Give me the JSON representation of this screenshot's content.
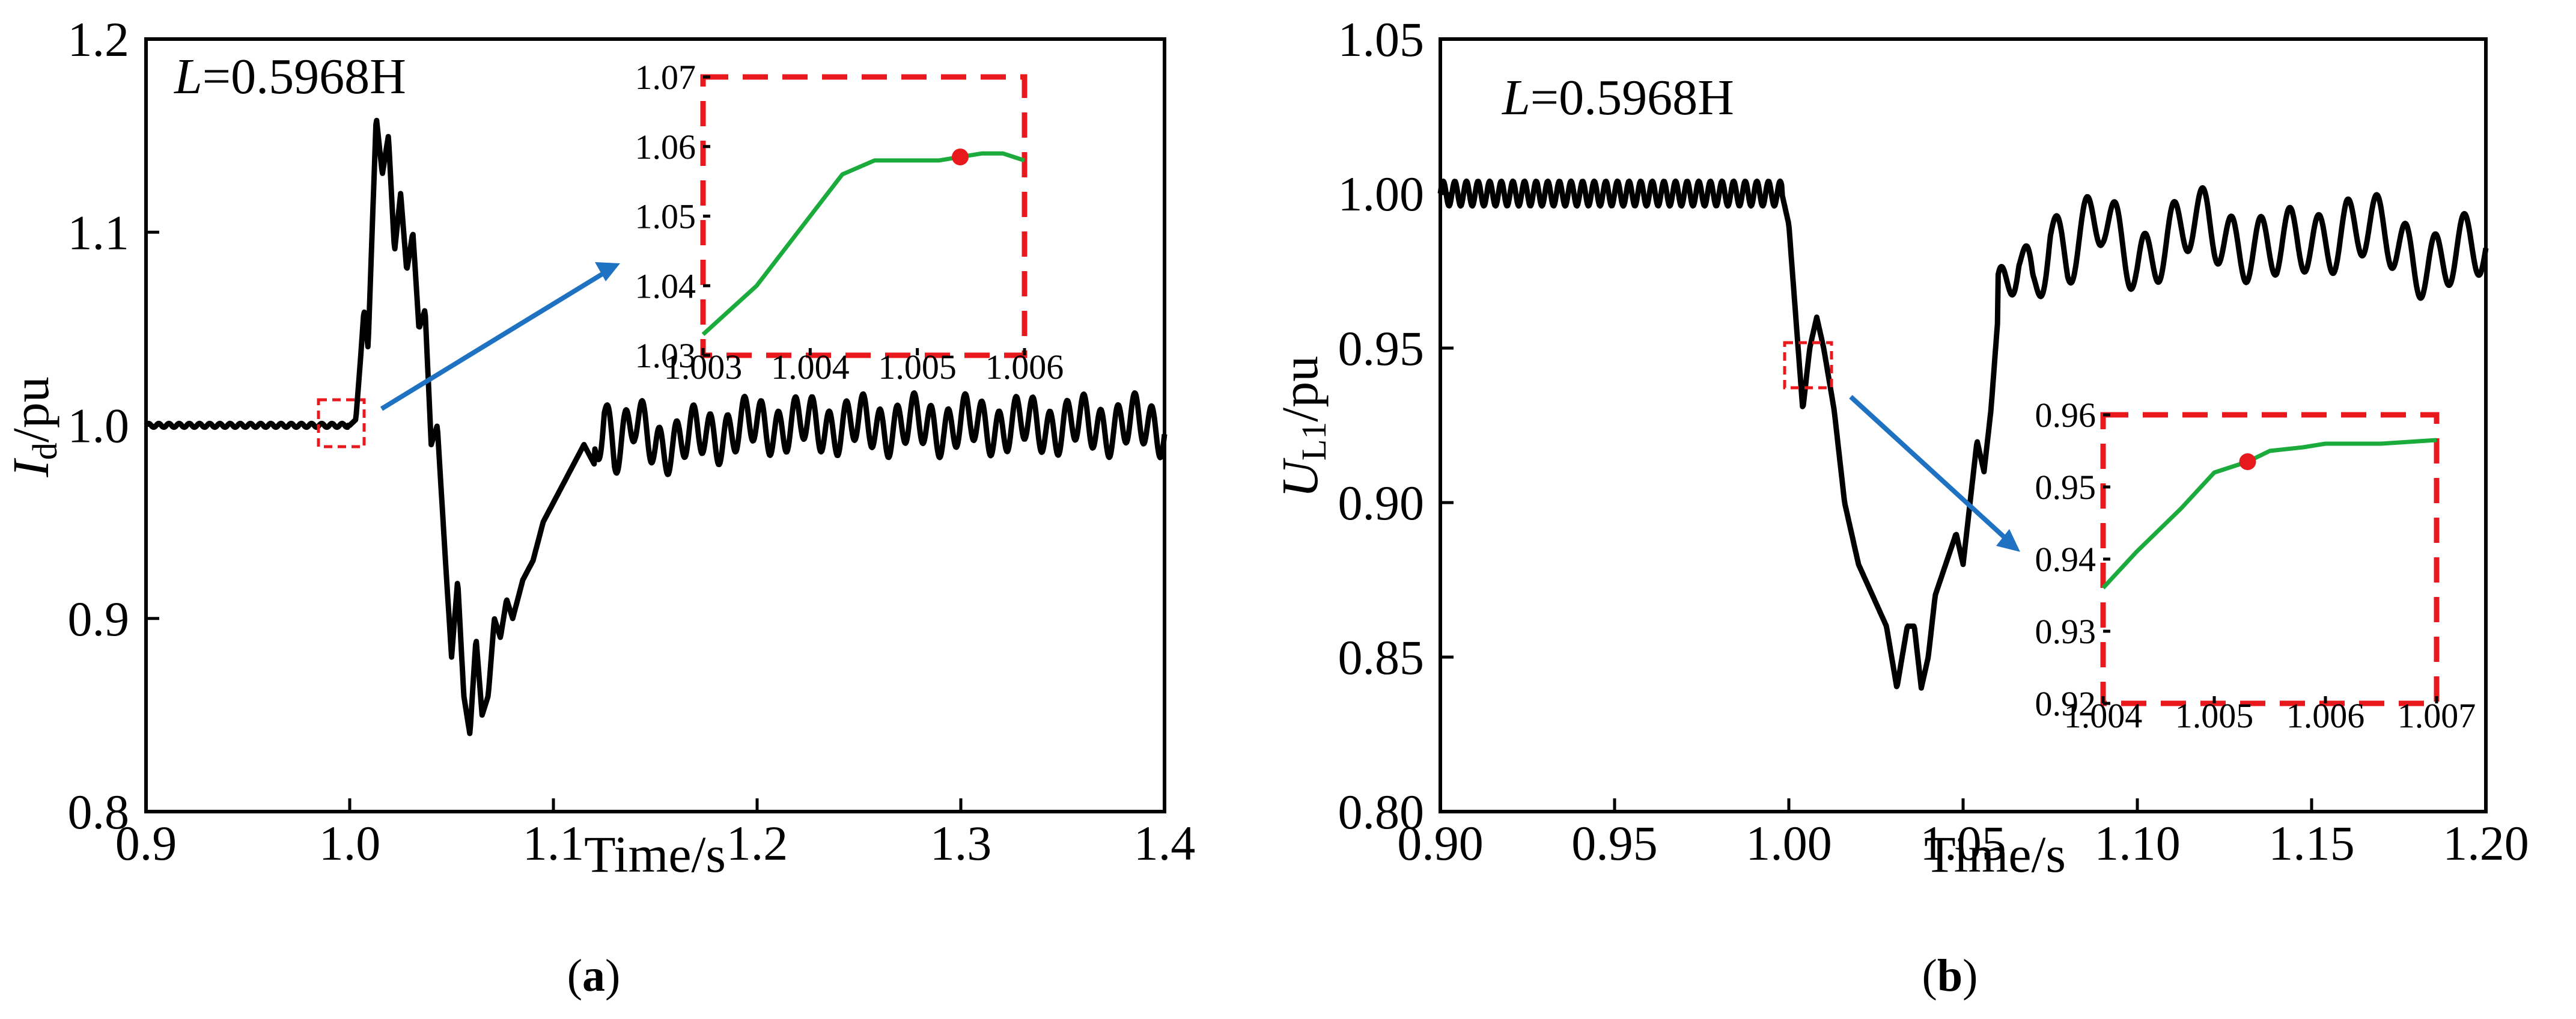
{
  "chart_data": [
    {
      "type": "line",
      "panel": "a",
      "caption": "a",
      "annotation": {
        "var": "L",
        "value": "=0.5968H"
      },
      "xlabel": "Time/s",
      "ylabel": {
        "main": "I",
        "sub": "d",
        "unit": "/pu"
      },
      "xlim": [
        0.9,
        1.4
      ],
      "ylim": [
        0.8,
        1.2
      ],
      "xticks": [
        "0.9",
        "1.0",
        "1.1",
        "1.2",
        "1.3",
        "1.4"
      ],
      "yticks": [
        "0.8",
        "0.9",
        "1.0",
        "1.1",
        "1.2"
      ],
      "series": [
        {
          "color": "#000000",
          "x": [
            0.9,
            0.95,
            0.99,
            1.0,
            1.003,
            1.005,
            1.007,
            1.009,
            1.011,
            1.013,
            1.016,
            1.019,
            1.022,
            1.025,
            1.028,
            1.031,
            1.034,
            1.037,
            1.04,
            1.043,
            1.047,
            1.05,
            1.053,
            1.056,
            1.059,
            1.062,
            1.065,
            1.068,
            1.071,
            1.074,
            1.077,
            1.08,
            1.085,
            1.09,
            1.095,
            1.1,
            1.105,
            1.11,
            1.115,
            1.12,
            1.125,
            1.13,
            1.14,
            1.15,
            1.2,
            1.25,
            1.3,
            1.35,
            1.4
          ],
          "y": [
            1.0,
            1.0,
            1.0,
            1.0,
            1.003,
            1.03,
            1.06,
            1.04,
            1.1,
            1.16,
            1.13,
            1.15,
            1.09,
            1.12,
            1.08,
            1.1,
            1.05,
            1.06,
            0.99,
            1.0,
            0.93,
            0.88,
            0.92,
            0.86,
            0.84,
            0.89,
            0.85,
            0.86,
            0.9,
            0.89,
            0.91,
            0.9,
            0.92,
            0.93,
            0.95,
            0.96,
            0.97,
            0.98,
            0.99,
            0.98,
            1.01,
            0.99,
            1.0,
            0.99,
            1.0,
            1.0,
            1.0,
            1.0,
            1.0
          ],
          "ripple_after": 1.12,
          "ripple_amplitude": 0.012
        }
      ],
      "inset": {
        "xlim": [
          1.003,
          1.006
        ],
        "ylim": [
          1.03,
          1.07
        ],
        "xticks": [
          "1.003",
          "1.004",
          "1.005",
          "1.006"
        ],
        "yticks": [
          "1.03",
          "1.04",
          "1.05",
          "1.06",
          "1.07"
        ],
        "series": {
          "color": "#1aab3c",
          "x": [
            1.003,
            1.0035,
            1.004,
            1.0043,
            1.0046,
            1.0048,
            1.005,
            1.0052,
            1.0054,
            1.0056,
            1.0058,
            1.006
          ],
          "y": [
            1.033,
            1.04,
            1.05,
            1.056,
            1.058,
            1.058,
            1.058,
            1.058,
            1.0585,
            1.059,
            1.059,
            1.058
          ]
        },
        "marker": {
          "x": 1.0054,
          "y": 1.0585,
          "color": "#e8191d"
        }
      }
    },
    {
      "type": "line",
      "panel": "b",
      "caption": "b",
      "annotation": {
        "var": "L",
        "value": "=0.5968H"
      },
      "xlabel": "Time/s",
      "ylabel": {
        "main": "U",
        "sub": "L1",
        "unit": "/pu"
      },
      "xlim": [
        0.9,
        1.2
      ],
      "ylim": [
        0.8,
        1.05
      ],
      "xticks": [
        "0.90",
        "0.95",
        "1.00",
        "1.05",
        "1.10",
        "1.15",
        "1.20"
      ],
      "yticks": [
        "0.80",
        "0.85",
        "0.90",
        "0.95",
        "1.00",
        "1.05"
      ],
      "series": [
        {
          "color": "#000000",
          "x": [
            0.9,
            0.95,
            0.998,
            1.0,
            1.002,
            1.004,
            1.006,
            1.008,
            1.01,
            1.013,
            1.016,
            1.02,
            1.024,
            1.028,
            1.031,
            1.034,
            1.036,
            1.038,
            1.04,
            1.042,
            1.045,
            1.048,
            1.05,
            1.052,
            1.054,
            1.056,
            1.058,
            1.06,
            1.063,
            1.066,
            1.07,
            1.075,
            1.08,
            1.09,
            1.1,
            1.12,
            1.14,
            1.16,
            1.18,
            1.2
          ],
          "y": [
            1.0,
            1.0,
            1.0,
            0.99,
            0.96,
            0.93,
            0.95,
            0.96,
            0.95,
            0.93,
            0.9,
            0.88,
            0.87,
            0.86,
            0.84,
            0.86,
            0.86,
            0.84,
            0.85,
            0.87,
            0.88,
            0.89,
            0.88,
            0.9,
            0.92,
            0.91,
            0.93,
            0.96,
            0.97,
            0.98,
            0.97,
            0.99,
            0.98,
            0.99,
            0.98,
            0.99,
            0.98,
            0.99,
            0.98,
            0.98
          ],
          "ripple_before": 0.998,
          "ripple_amplitude": 0.004,
          "ripple_after": 1.06,
          "ripple_amplitude_after": 0.01
        }
      ],
      "inset": {
        "xlim": [
          1.004,
          1.007
        ],
        "ylim": [
          0.92,
          0.96
        ],
        "xticks": [
          "1.004",
          "1.005",
          "1.006",
          "1.007"
        ],
        "yticks": [
          "0.92",
          "0.93",
          "0.94",
          "0.95",
          "0.96"
        ],
        "series": {
          "color": "#1aab3c",
          "x": [
            1.004,
            1.0043,
            1.0047,
            1.005,
            1.0053,
            1.0055,
            1.0058,
            1.006,
            1.0065,
            1.007
          ],
          "y": [
            0.936,
            0.941,
            0.947,
            0.952,
            0.9535,
            0.955,
            0.9555,
            0.956,
            0.956,
            0.9565
          ],
          "note": ""
        },
        "marker": {
          "x": 1.0053,
          "y": 0.9535,
          "color": "#e8191d"
        }
      }
    }
  ]
}
